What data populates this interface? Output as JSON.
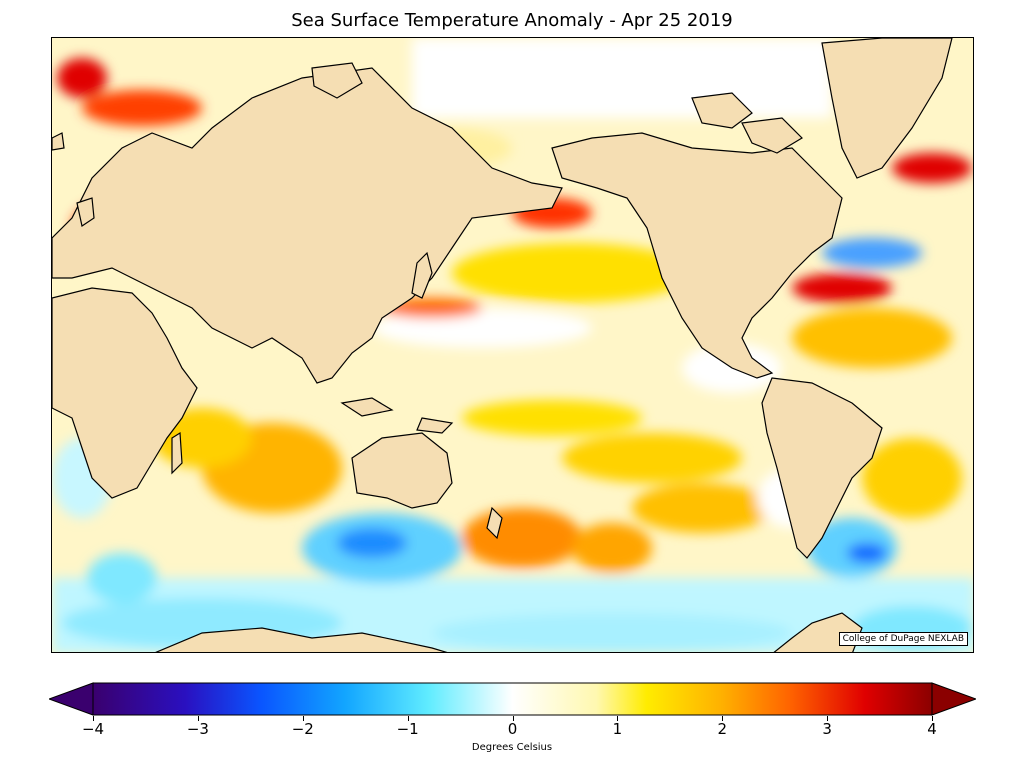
{
  "title": "Sea Surface Temperature Anomaly - Apr 25 2019",
  "credit": "College of DuPage NEXLAB",
  "colorbar": {
    "label": "Degrees Celsius",
    "min": -4,
    "max": 4,
    "ticks": [
      "−4",
      "−3",
      "−2",
      "−1",
      "0",
      "1",
      "2",
      "3",
      "4"
    ],
    "colors": [
      "#3a006e",
      "#1a1ad0",
      "#0066ff",
      "#10b4ff",
      "#7ff3ff",
      "#ffffff",
      "#fff8b8",
      "#ffe800",
      "#ffb400",
      "#ff6a00",
      "#e00000",
      "#8b0000"
    ]
  },
  "map": {
    "land_color": "#f5deb3",
    "ocean_base": "#fff6c0"
  }
}
